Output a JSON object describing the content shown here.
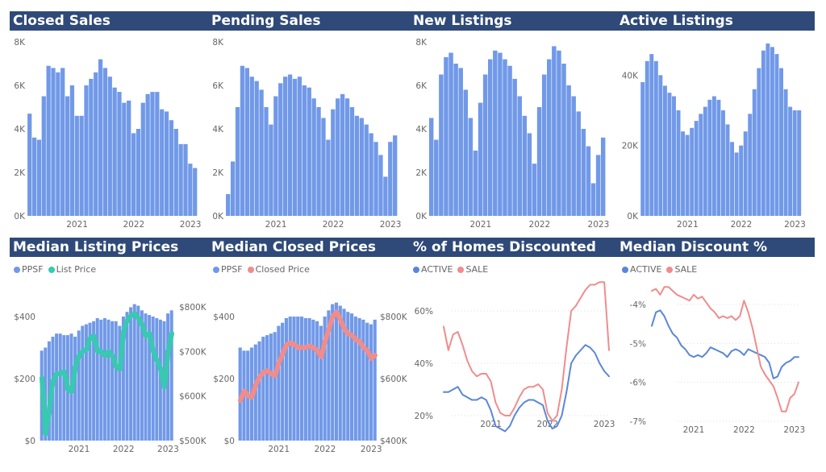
{
  "colors": {
    "title_bg": "#2f4a78",
    "bar": "#7199e8",
    "teal": "#38c9b0",
    "salmon": "#f08c8c",
    "blue_line": "#5b86d8",
    "grid": "#dddddd"
  },
  "months": [
    "2020-03",
    "2020-04",
    "2020-05",
    "2020-06",
    "2020-07",
    "2020-08",
    "2020-09",
    "2020-10",
    "2020-11",
    "2020-12",
    "2021-01",
    "2021-02",
    "2021-03",
    "2021-04",
    "2021-05",
    "2021-06",
    "2021-07",
    "2021-08",
    "2021-09",
    "2021-10",
    "2021-11",
    "2021-12",
    "2022-01",
    "2022-02",
    "2022-03",
    "2022-04",
    "2022-05",
    "2022-06",
    "2022-07",
    "2022-08",
    "2022-09",
    "2022-10",
    "2022-11",
    "2022-12",
    "2023-01",
    "2023-02"
  ],
  "chart_data": [
    {
      "id": "closed-sales",
      "title": "Closed Sales",
      "type": "bar",
      "ylim": [
        0,
        8000
      ],
      "yticks": [
        0,
        2000,
        4000,
        6000,
        8000
      ],
      "ytick_labels": [
        "0K",
        "2K",
        "4K",
        "6K",
        "8K"
      ],
      "xtick_labels": [
        "2021",
        "2022",
        "2023"
      ],
      "series": [
        {
          "values": [
            4700,
            3600,
            3500,
            5500,
            6900,
            6800,
            6600,
            6800,
            5500,
            6000,
            4600,
            4600,
            6000,
            6300,
            6600,
            7200,
            6800,
            6400,
            5900,
            5700,
            5200,
            5300,
            3800,
            4000,
            5200,
            5600,
            5700,
            5700,
            4900,
            4800,
            4400,
            4000,
            3300,
            3300,
            2400,
            2200
          ]
        }
      ]
    },
    {
      "id": "pending-sales",
      "title": "Pending Sales",
      "type": "bar",
      "ylim": [
        0,
        8000
      ],
      "yticks": [
        0,
        2000,
        4000,
        6000,
        8000
      ],
      "ytick_labels": [
        "0K",
        "2K",
        "4K",
        "6K",
        "8K"
      ],
      "xtick_labels": [
        "2021",
        "2022",
        "2023"
      ],
      "series": [
        {
          "values": [
            1000,
            2500,
            5000,
            6900,
            6800,
            6400,
            6200,
            5800,
            5000,
            4200,
            5500,
            6100,
            6400,
            6500,
            6300,
            6400,
            6000,
            5900,
            5400,
            5000,
            4500,
            3500,
            4900,
            5400,
            5600,
            5400,
            5000,
            4600,
            4500,
            4200,
            3800,
            3400,
            2800,
            1800,
            3400,
            3700
          ]
        }
      ]
    },
    {
      "id": "new-listings",
      "title": "New Listings",
      "type": "bar",
      "ylim": [
        0,
        8000
      ],
      "yticks": [
        0,
        2000,
        4000,
        6000,
        8000
      ],
      "ytick_labels": [
        "0K",
        "2K",
        "4K",
        "6K",
        "8K"
      ],
      "xtick_labels": [
        "2021",
        "2022",
        "2023"
      ],
      "series": [
        {
          "values": [
            4500,
            3500,
            6500,
            7300,
            7500,
            7000,
            6800,
            5800,
            4500,
            3000,
            5200,
            6500,
            7200,
            7600,
            7500,
            7200,
            6900,
            6300,
            5500,
            4600,
            3800,
            2400,
            5000,
            6500,
            7200,
            7800,
            7600,
            7000,
            6000,
            5500,
            4800,
            4000,
            3200,
            1500,
            2800,
            3600
          ]
        }
      ]
    },
    {
      "id": "active-listings",
      "title": "Active Listings",
      "type": "bar",
      "ylim": [
        0,
        49000
      ],
      "yticks": [
        0,
        20000,
        40000
      ],
      "ytick_labels": [
        "0K",
        "20K",
        "40K"
      ],
      "xtick_labels": [
        "2021",
        "2022",
        "2023"
      ],
      "series": [
        {
          "values": [
            38000,
            44000,
            46000,
            44000,
            40000,
            37000,
            35000,
            34000,
            30000,
            24000,
            23000,
            25000,
            27000,
            29000,
            31000,
            33000,
            34000,
            33000,
            30000,
            26000,
            21000,
            18000,
            20000,
            24000,
            29000,
            36000,
            42000,
            47000,
            49000,
            48000,
            46000,
            42000,
            36000,
            31000,
            30000,
            30000
          ]
        }
      ]
    },
    {
      "id": "median-listing-prices",
      "title": "Median Listing Prices",
      "type": "bar+line",
      "ylim": [
        0,
        400
      ],
      "yticks": [
        0,
        200,
        400
      ],
      "ytick_labels": [
        "$0",
        "$200",
        "$400"
      ],
      "y2lim": [
        500000,
        800000
      ],
      "y2ticks": [
        500000,
        600000,
        700000,
        800000
      ],
      "y2tick_labels": [
        "$500K",
        "$600K",
        "$700K",
        "$800K"
      ],
      "xtick_labels": [
        "2021",
        "2022",
        "2023"
      ],
      "legend": [
        "PPSF",
        "List Price"
      ],
      "series": [
        {
          "name": "PPSF",
          "axis": "left",
          "values": [
            290,
            300,
            320,
            335,
            345,
            345,
            340,
            340,
            345,
            335,
            355,
            370,
            375,
            380,
            385,
            395,
            390,
            395,
            390,
            385,
            385,
            370,
            400,
            415,
            430,
            440,
            435,
            420,
            410,
            405,
            400,
            395,
            390,
            385,
            410,
            420
          ]
        },
        {
          "name": "List Price",
          "axis": "right",
          "values": [
            640000,
            515000,
            570000,
            635000,
            650000,
            650000,
            655000,
            615000,
            610000,
            665000,
            690000,
            700000,
            705000,
            730000,
            735000,
            700000,
            700000,
            690000,
            700000,
            690000,
            665000,
            660000,
            745000,
            770000,
            780000,
            785000,
            775000,
            760000,
            735000,
            740000,
            700000,
            680000,
            660000,
            620000,
            700000,
            740000
          ]
        }
      ]
    },
    {
      "id": "median-closed-prices",
      "title": "Median Closed Prices",
      "type": "bar+line",
      "ylim": [
        0,
        400
      ],
      "yticks": [
        0,
        200,
        400
      ],
      "ytick_labels": [
        "$0",
        "$200",
        "$400"
      ],
      "y2lim": [
        400000,
        800000
      ],
      "y2ticks": [
        400000,
        600000,
        800000
      ],
      "y2tick_labels": [
        "$400K",
        "$600K",
        "$800K"
      ],
      "xtick_labels": [
        "2021",
        "2022",
        "2023"
      ],
      "legend": [
        "PPSF",
        "Closed Price"
      ],
      "series": [
        {
          "name": "PPSF",
          "axis": "left",
          "values": [
            300,
            290,
            290,
            300,
            310,
            320,
            335,
            340,
            345,
            350,
            370,
            380,
            395,
            400,
            400,
            400,
            400,
            395,
            395,
            390,
            385,
            370,
            400,
            420,
            440,
            445,
            435,
            425,
            415,
            410,
            400,
            395,
            390,
            380,
            375,
            390
          ]
        },
        {
          "name": "Closed Price",
          "axis": "right",
          "values": [
            530000,
            560000,
            545000,
            540000,
            580000,
            605000,
            620000,
            625000,
            615000,
            610000,
            650000,
            680000,
            710000,
            715000,
            710000,
            700000,
            700000,
            700000,
            705000,
            700000,
            690000,
            670000,
            720000,
            760000,
            800000,
            815000,
            790000,
            760000,
            745000,
            740000,
            725000,
            720000,
            700000,
            690000,
            665000,
            675000
          ]
        }
      ]
    },
    {
      "id": "pct-homes-discounted",
      "title": "% of Homes Discounted",
      "type": "line",
      "ylim": [
        20,
        60
      ],
      "yticks": [
        20,
        40,
        60
      ],
      "ytick_labels": [
        "20%",
        "40%",
        "60%"
      ],
      "xtick_labels": [
        "2021",
        "2022",
        "2023"
      ],
      "grid": true,
      "legend": [
        "ACTIVE",
        "SALE"
      ],
      "series": [
        {
          "name": "ACTIVE",
          "values": [
            29,
            29,
            30,
            31,
            28,
            27,
            26,
            26,
            27,
            26,
            22,
            16,
            15,
            14,
            16,
            20,
            23,
            25,
            26,
            26,
            25,
            24,
            18,
            15,
            16,
            20,
            29,
            40,
            43,
            45,
            47,
            46,
            44,
            40,
            37,
            35
          ]
        },
        {
          "name": "SALE",
          "values": [
            54,
            45,
            51,
            52,
            47,
            41,
            37,
            35,
            36,
            36,
            33,
            25,
            21,
            20,
            20,
            23,
            27,
            30,
            31,
            31,
            32,
            30,
            21,
            18,
            20,
            30,
            46,
            60,
            62,
            65,
            68,
            70,
            70,
            71,
            71,
            45
          ]
        }
      ]
    },
    {
      "id": "median-discount-pct",
      "title": "Median Discount %",
      "type": "line",
      "ylim": [
        -7,
        -4
      ],
      "yticks": [
        -4,
        -5,
        -6,
        -7
      ],
      "ytick_labels": [
        "-4%",
        "-5%",
        "-6%",
        "-7%"
      ],
      "xtick_labels": [
        "2021",
        "2022",
        "2023"
      ],
      "grid": true,
      "legend": [
        "ACTIVE",
        "SALE"
      ],
      "series": [
        {
          "name": "ACTIVE",
          "values": [
            -4.55,
            -4.2,
            -4.15,
            -4.3,
            -4.55,
            -4.75,
            -4.85,
            -5.05,
            -5.15,
            -5.3,
            -5.35,
            -5.3,
            -5.35,
            -5.25,
            -5.1,
            -5.15,
            -5.2,
            -5.25,
            -5.35,
            -5.2,
            -5.15,
            -5.2,
            -5.3,
            -5.15,
            -5.2,
            -5.25,
            -5.3,
            -5.35,
            -5.5,
            -5.9,
            -5.85,
            -5.6,
            -5.5,
            -5.45,
            -5.35,
            -5.35
          ]
        },
        {
          "name": "SALE",
          "values": [
            -3.65,
            -3.6,
            -3.75,
            -3.55,
            -3.55,
            -3.65,
            -3.75,
            -3.8,
            -3.85,
            -3.9,
            -3.75,
            -3.85,
            -3.8,
            -3.95,
            -4.1,
            -4.2,
            -4.35,
            -4.3,
            -4.35,
            -4.3,
            -4.4,
            -4.3,
            -3.9,
            -4.2,
            -4.6,
            -5.1,
            -5.6,
            -5.8,
            -5.95,
            -6.1,
            -6.4,
            -6.75,
            -6.75,
            -6.4,
            -6.3,
            -6.0
          ]
        }
      ]
    }
  ]
}
